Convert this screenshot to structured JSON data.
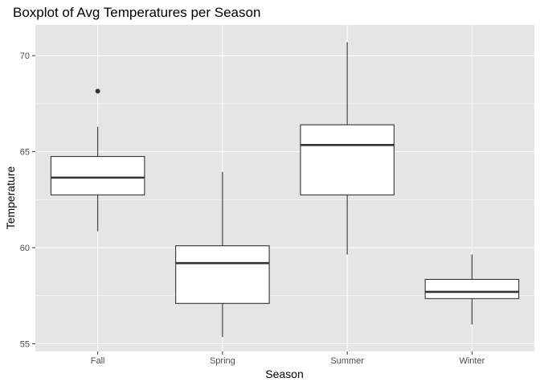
{
  "chart_data": {
    "type": "boxplot",
    "title": "Boxplot of Avg Temperatures per Season",
    "xlabel": "Season",
    "ylabel": "Temperature",
    "categories": [
      "Fall",
      "Spring",
      "Summer",
      "Winter"
    ],
    "ylim": [
      54.6,
      71.6
    ],
    "yticks": [
      55,
      60,
      65,
      70
    ],
    "ytick_labels": [
      "55",
      "60",
      "65",
      "70"
    ],
    "grid": true,
    "boxes": [
      {
        "category": "Fall",
        "whisker_low": 60.85,
        "q1": 62.75,
        "median": 63.65,
        "q3": 64.75,
        "whisker_high": 66.3,
        "outliers": [
          68.15
        ]
      },
      {
        "category": "Spring",
        "whisker_low": 55.35,
        "q1": 57.1,
        "median": 59.2,
        "q3": 60.1,
        "whisker_high": 63.95,
        "outliers": []
      },
      {
        "category": "Summer",
        "whisker_low": 59.65,
        "q1": 62.75,
        "median": 65.35,
        "q3": 66.4,
        "whisker_high": 70.7,
        "outliers": []
      },
      {
        "category": "Winter",
        "whisker_low": 56.0,
        "q1": 57.35,
        "median": 57.7,
        "q3": 58.35,
        "whisker_high": 59.65,
        "outliers": []
      }
    ],
    "colors": {
      "panel": "#e5e5e5",
      "grid_major": "#ffffff",
      "box_fill": "#ffffff",
      "box_stroke": "#333333",
      "tick": "#333333"
    }
  }
}
